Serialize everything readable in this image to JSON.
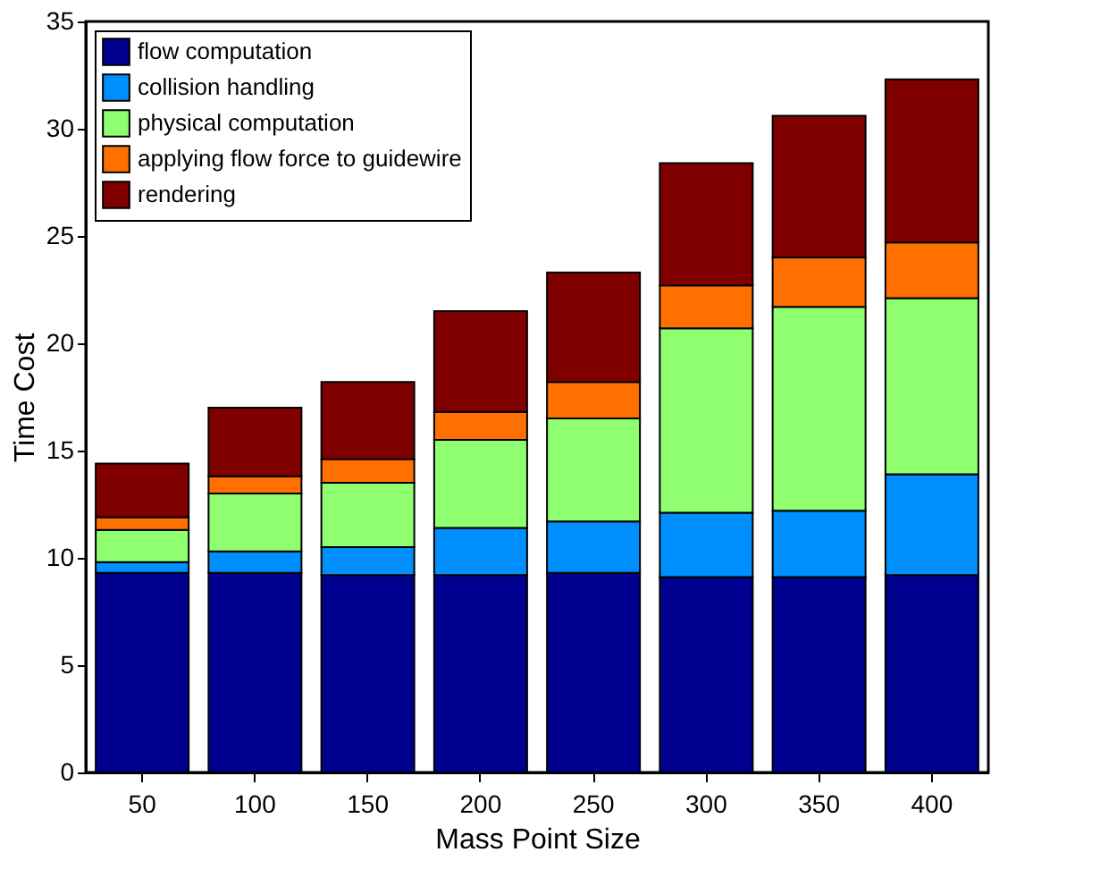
{
  "chart_data": {
    "type": "bar",
    "stacked": true,
    "xlabel": "Mass Point Size",
    "ylabel": "Time Cost",
    "categories": [
      "50",
      "100",
      "150",
      "200",
      "250",
      "300",
      "350",
      "400"
    ],
    "series": [
      {
        "name": "flow computation",
        "color": "#00008f",
        "values": [
          9.3,
          9.3,
          9.2,
          9.2,
          9.3,
          9.1,
          9.1,
          9.2
        ]
      },
      {
        "name": "collision handling",
        "color": "#008fff",
        "values": [
          0.5,
          1.0,
          1.3,
          2.2,
          2.4,
          3.0,
          3.1,
          4.7
        ]
      },
      {
        "name": "physical computation",
        "color": "#8fff6f",
        "values": [
          1.5,
          2.7,
          3.0,
          4.1,
          4.8,
          8.6,
          9.5,
          8.2
        ]
      },
      {
        "name": "applying flow force to guidewire",
        "color": "#ff7000",
        "values": [
          0.6,
          0.8,
          1.1,
          1.3,
          1.7,
          2.0,
          2.3,
          2.6
        ]
      },
      {
        "name": "rendering",
        "color": "#800000",
        "values": [
          2.5,
          3.2,
          3.6,
          4.7,
          5.1,
          5.7,
          6.6,
          7.6
        ]
      }
    ],
    "ylim": [
      0,
      35
    ],
    "yticks": [
      0,
      5,
      10,
      15,
      20,
      25,
      30,
      35
    ],
    "grid": false,
    "legend": "top left"
  }
}
